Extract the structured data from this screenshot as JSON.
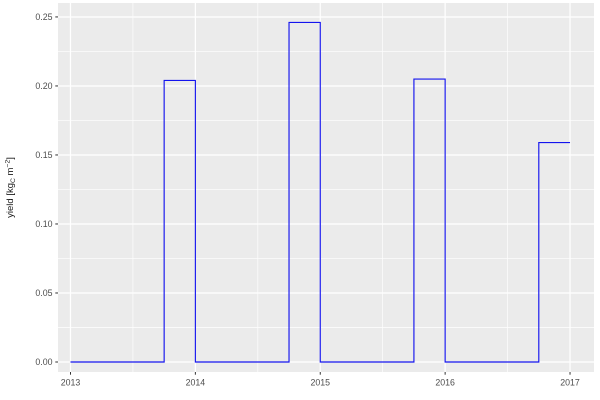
{
  "figure": {
    "background_color": "#FFFFFF"
  },
  "chart_data": {
    "type": "line",
    "subtype": "step",
    "title": "",
    "xlabel": "",
    "ylabel": "yield [kgC m−2]",
    "ylabel_parts": [
      {
        "text": "yield [kg"
      },
      {
        "text": "C",
        "script": "sub"
      },
      {
        "text": " m"
      },
      {
        "text": "−2",
        "script": "sup"
      },
      {
        "text": "]"
      }
    ],
    "xlim": [
      2012.9,
      2017.192
    ],
    "ylim": [
      -0.00725,
      0.2601
    ],
    "grid": true,
    "legend_position": "none",
    "x_ticks": [
      {
        "v": 2013,
        "label": "2013"
      },
      {
        "v": 2014,
        "label": "2014"
      },
      {
        "v": 2015,
        "label": "2015"
      },
      {
        "v": 2016,
        "label": "2016"
      },
      {
        "v": 2017,
        "label": "2017"
      }
    ],
    "y_ticks": [
      {
        "v": 0.0,
        "label": "0.00"
      },
      {
        "v": 0.05,
        "label": "0.05"
      },
      {
        "v": 0.1,
        "label": "0.10"
      },
      {
        "v": 0.15,
        "label": "0.15"
      },
      {
        "v": 0.2,
        "label": "0.20"
      },
      {
        "v": 0.25,
        "label": "0.25"
      }
    ],
    "x_minor_gridlines": [
      2013.5,
      2014.5,
      2015.5,
      2016.5
    ],
    "y_minor_gridlines": [
      0.025,
      0.075,
      0.125,
      0.175,
      0.225
    ],
    "series": [
      {
        "name": "yield",
        "color": "#1414EE",
        "steps": [
          {
            "x_start": 2013.0,
            "x_end": 2013.75,
            "value": 0.0
          },
          {
            "x_start": 2013.75,
            "x_end": 2014.0,
            "value": 0.204
          },
          {
            "x_start": 2014.0,
            "x_end": 2014.75,
            "value": 0.0
          },
          {
            "x_start": 2014.75,
            "x_end": 2015.0,
            "value": 0.246
          },
          {
            "x_start": 2015.0,
            "x_end": 2015.75,
            "value": 0.0
          },
          {
            "x_start": 2015.75,
            "x_end": 2016.0,
            "value": 0.205
          },
          {
            "x_start": 2016.0,
            "x_end": 2016.75,
            "value": 0.0
          },
          {
            "x_start": 2016.75,
            "x_end": 2017.0,
            "value": 0.159
          }
        ]
      }
    ],
    "colors": {
      "panel_background": "#EBEBEB",
      "gridline": "#FFFFFF",
      "tick_mark": "#333333",
      "tick_label": "#4D4D4D",
      "axis_title": "#1A1A1A"
    }
  }
}
